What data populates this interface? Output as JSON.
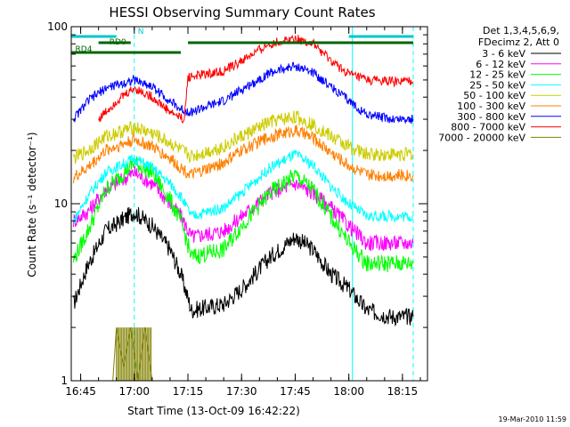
{
  "chart_data": {
    "type": "line",
    "title": "HESSI Observing Summary Count Rates",
    "xlabel": "Start Time (13-Oct-09 16:42:22)",
    "ylabel": "Count Rate (s⁻¹ detector⁻¹)",
    "y_scale": "log",
    "ylim": [
      1,
      100
    ],
    "xlim": [
      "16:42:22",
      "18:22:00"
    ],
    "x_ticks": [
      "16:45",
      "17:00",
      "17:15",
      "17:30",
      "17:45",
      "18:00",
      "18:15"
    ],
    "y_ticks": [
      "1",
      "10",
      "100"
    ],
    "legend_header": [
      "Det 1,3,4,5,6,9,",
      "FDecimz 2, Att 0"
    ],
    "legend_position": "right",
    "series": [
      {
        "name": "3 - 6 keV",
        "color": "#000000",
        "points": [
          [
            "16:43",
            2.7
          ],
          [
            "16:47",
            4.5
          ],
          [
            "16:52",
            7.0
          ],
          [
            "17:00",
            9.0
          ],
          [
            "17:05",
            7.5
          ],
          [
            "17:10",
            5.5
          ],
          [
            "17:13",
            4.0
          ],
          [
            "17:16",
            2.5
          ],
          [
            "17:25",
            2.7
          ],
          [
            "17:30",
            3.3
          ],
          [
            "17:38",
            5.0
          ],
          [
            "17:45",
            6.5
          ],
          [
            "17:50",
            5.5
          ],
          [
            "17:55",
            4.0
          ],
          [
            "18:00",
            3.3
          ],
          [
            "18:05",
            2.5
          ],
          [
            "18:12",
            2.3
          ],
          [
            "18:18",
            2.3
          ]
        ]
      },
      {
        "name": "6 - 12 keV",
        "color": "#ff00ff",
        "points": [
          [
            "16:43",
            8.0
          ],
          [
            "16:47",
            9.0
          ],
          [
            "16:52",
            12.0
          ],
          [
            "17:00",
            15.0
          ],
          [
            "17:05",
            13.0
          ],
          [
            "17:10",
            10.0
          ],
          [
            "17:13",
            8.5
          ],
          [
            "17:16",
            6.5
          ],
          [
            "17:25",
            7.0
          ],
          [
            "17:30",
            8.5
          ],
          [
            "17:38",
            11.5
          ],
          [
            "17:45",
            13.0
          ],
          [
            "17:50",
            11.5
          ],
          [
            "17:55",
            9.5
          ],
          [
            "18:00",
            7.5
          ],
          [
            "18:05",
            6.0
          ],
          [
            "18:12",
            6.0
          ],
          [
            "18:18",
            6.0
          ]
        ]
      },
      {
        "name": "12 - 25 keV",
        "color": "#00ff00",
        "points": [
          [
            "16:43",
            4.8
          ],
          [
            "16:47",
            7.0
          ],
          [
            "16:52",
            12.0
          ],
          [
            "17:00",
            17.0
          ],
          [
            "17:05",
            15.0
          ],
          [
            "17:10",
            10.5
          ],
          [
            "17:13",
            8.0
          ],
          [
            "17:16",
            5.0
          ],
          [
            "17:25",
            5.5
          ],
          [
            "17:30",
            7.5
          ],
          [
            "17:38",
            11.5
          ],
          [
            "17:45",
            14.5
          ],
          [
            "17:50",
            12.0
          ],
          [
            "17:55",
            8.5
          ],
          [
            "18:00",
            6.0
          ],
          [
            "18:05",
            4.6
          ],
          [
            "18:12",
            4.6
          ],
          [
            "18:18",
            4.6
          ]
        ]
      },
      {
        "name": "25 - 50 keV",
        "color": "#00ffff",
        "points": [
          [
            "16:43",
            8.0
          ],
          [
            "16:47",
            11.0
          ],
          [
            "16:52",
            15.0
          ],
          [
            "17:00",
            18.0
          ],
          [
            "17:05",
            16.0
          ],
          [
            "17:10",
            13.0
          ],
          [
            "17:13",
            11.0
          ],
          [
            "17:16",
            8.5
          ],
          [
            "17:25",
            9.5
          ],
          [
            "17:30",
            11.5
          ],
          [
            "17:38",
            16.0
          ],
          [
            "17:45",
            19.0
          ],
          [
            "17:50",
            16.5
          ],
          [
            "17:55",
            12.5
          ],
          [
            "18:00",
            10.0
          ],
          [
            "18:05",
            8.5
          ],
          [
            "18:12",
            8.5
          ],
          [
            "18:18",
            8.5
          ]
        ]
      },
      {
        "name": "50 - 100 keV",
        "color": "#cccc00",
        "points": [
          [
            "16:43",
            18.0
          ],
          [
            "16:47",
            20.0
          ],
          [
            "16:52",
            24.0
          ],
          [
            "17:00",
            27.0
          ],
          [
            "17:05",
            25.0
          ],
          [
            "17:10",
            22.0
          ],
          [
            "17:13",
            20.0
          ],
          [
            "17:16",
            18.5
          ],
          [
            "17:25",
            21.0
          ],
          [
            "17:30",
            24.0
          ],
          [
            "17:38",
            29.0
          ],
          [
            "17:45",
            31.0
          ],
          [
            "17:50",
            28.0
          ],
          [
            "17:55",
            24.0
          ],
          [
            "18:00",
            21.0
          ],
          [
            "18:05",
            19.0
          ],
          [
            "18:12",
            19.0
          ],
          [
            "18:18",
            19.0
          ]
        ]
      },
      {
        "name": "100 - 300 keV",
        "color": "#ff8000",
        "points": [
          [
            "16:43",
            14.0
          ],
          [
            "16:47",
            16.0
          ],
          [
            "16:52",
            20.0
          ],
          [
            "17:00",
            23.0
          ],
          [
            "17:05",
            21.0
          ],
          [
            "17:10",
            18.0
          ],
          [
            "17:13",
            16.0
          ],
          [
            "17:16",
            14.5
          ],
          [
            "17:25",
            17.0
          ],
          [
            "17:30",
            20.0
          ],
          [
            "17:38",
            24.0
          ],
          [
            "17:45",
            26.0
          ],
          [
            "17:50",
            23.5
          ],
          [
            "17:55",
            19.5
          ],
          [
            "18:00",
            16.5
          ],
          [
            "18:05",
            14.5
          ],
          [
            "18:12",
            14.5
          ],
          [
            "18:18",
            14.5
          ]
        ]
      },
      {
        "name": "300 - 800 keV",
        "color": "#0000ff",
        "points": [
          [
            "16:43",
            30.0
          ],
          [
            "16:47",
            38.0
          ],
          [
            "16:52",
            45.0
          ],
          [
            "17:00",
            50.0
          ],
          [
            "17:05",
            46.0
          ],
          [
            "17:10",
            38.0
          ],
          [
            "17:13",
            34.0
          ],
          [
            "17:16",
            33.0
          ],
          [
            "17:25",
            38.0
          ],
          [
            "17:30",
            44.0
          ],
          [
            "17:38",
            55.0
          ],
          [
            "17:45",
            60.0
          ],
          [
            "17:50",
            55.0
          ],
          [
            "17:55",
            46.0
          ],
          [
            "18:00",
            38.0
          ],
          [
            "18:05",
            32.0
          ],
          [
            "18:12",
            30.0
          ],
          [
            "18:18",
            30.0
          ]
        ]
      },
      {
        "name": "800 - 7000 keV",
        "color": "#ff0000",
        "points": [
          [
            "16:50",
            30.0
          ],
          [
            "16:55",
            38.0
          ],
          [
            "17:00",
            45.0
          ],
          [
            "17:05",
            40.0
          ],
          [
            "17:10",
            33.0
          ],
          [
            "17:14",
            30.0
          ],
          [
            "17:15",
            52.0
          ],
          [
            "17:25",
            56.0
          ],
          [
            "17:30",
            64.0
          ],
          [
            "17:38",
            80.0
          ],
          [
            "17:45",
            86.0
          ],
          [
            "17:50",
            80.0
          ],
          [
            "17:55",
            64.0
          ],
          [
            "18:00",
            54.0
          ],
          [
            "18:05",
            50.0
          ],
          [
            "18:12",
            49.0
          ],
          [
            "18:18",
            49.0
          ]
        ]
      },
      {
        "name": "7000 - 20000 keV",
        "color": "#808000",
        "points": [
          [
            "16:43",
            1.0
          ],
          [
            "16:54",
            1.0
          ],
          [
            "16:55",
            2.0
          ],
          [
            "16:57",
            1.2
          ],
          [
            "16:59",
            2.0
          ],
          [
            "17:01",
            1.0
          ],
          [
            "17:03",
            2.0
          ],
          [
            "17:05",
            1.0
          ],
          [
            "18:18",
            1.0
          ]
        ]
      }
    ],
    "flag_bars": [
      {
        "label": "N",
        "color": "#00c8c8",
        "intervals": [
          [
            "16:42:22",
            "16:55"
          ],
          [
            "18:00",
            "18:18"
          ]
        ]
      },
      {
        "label": "RD0",
        "color": "#006400",
        "intervals": [
          [
            "16:50",
            "16:59"
          ],
          [
            "17:15",
            "18:18"
          ]
        ]
      },
      {
        "label": "RD4",
        "color": "#006400",
        "intervals": [
          [
            "16:42:22",
            "16:47"
          ],
          [
            "16:47",
            "17:13"
          ]
        ]
      }
    ],
    "vertical_lines": [
      {
        "time": "16:42:22",
        "color": "#00ffff",
        "style": "solid"
      },
      {
        "time": "17:00",
        "color": "#00ffff",
        "style": "dashed"
      },
      {
        "time": "18:01",
        "color": "#00ffff",
        "style": "solid"
      },
      {
        "time": "18:18",
        "color": "#00ffff",
        "style": "dashed"
      }
    ],
    "grid": false
  },
  "footer": {
    "timestamp": "19-Mar-2010 11:59"
  }
}
